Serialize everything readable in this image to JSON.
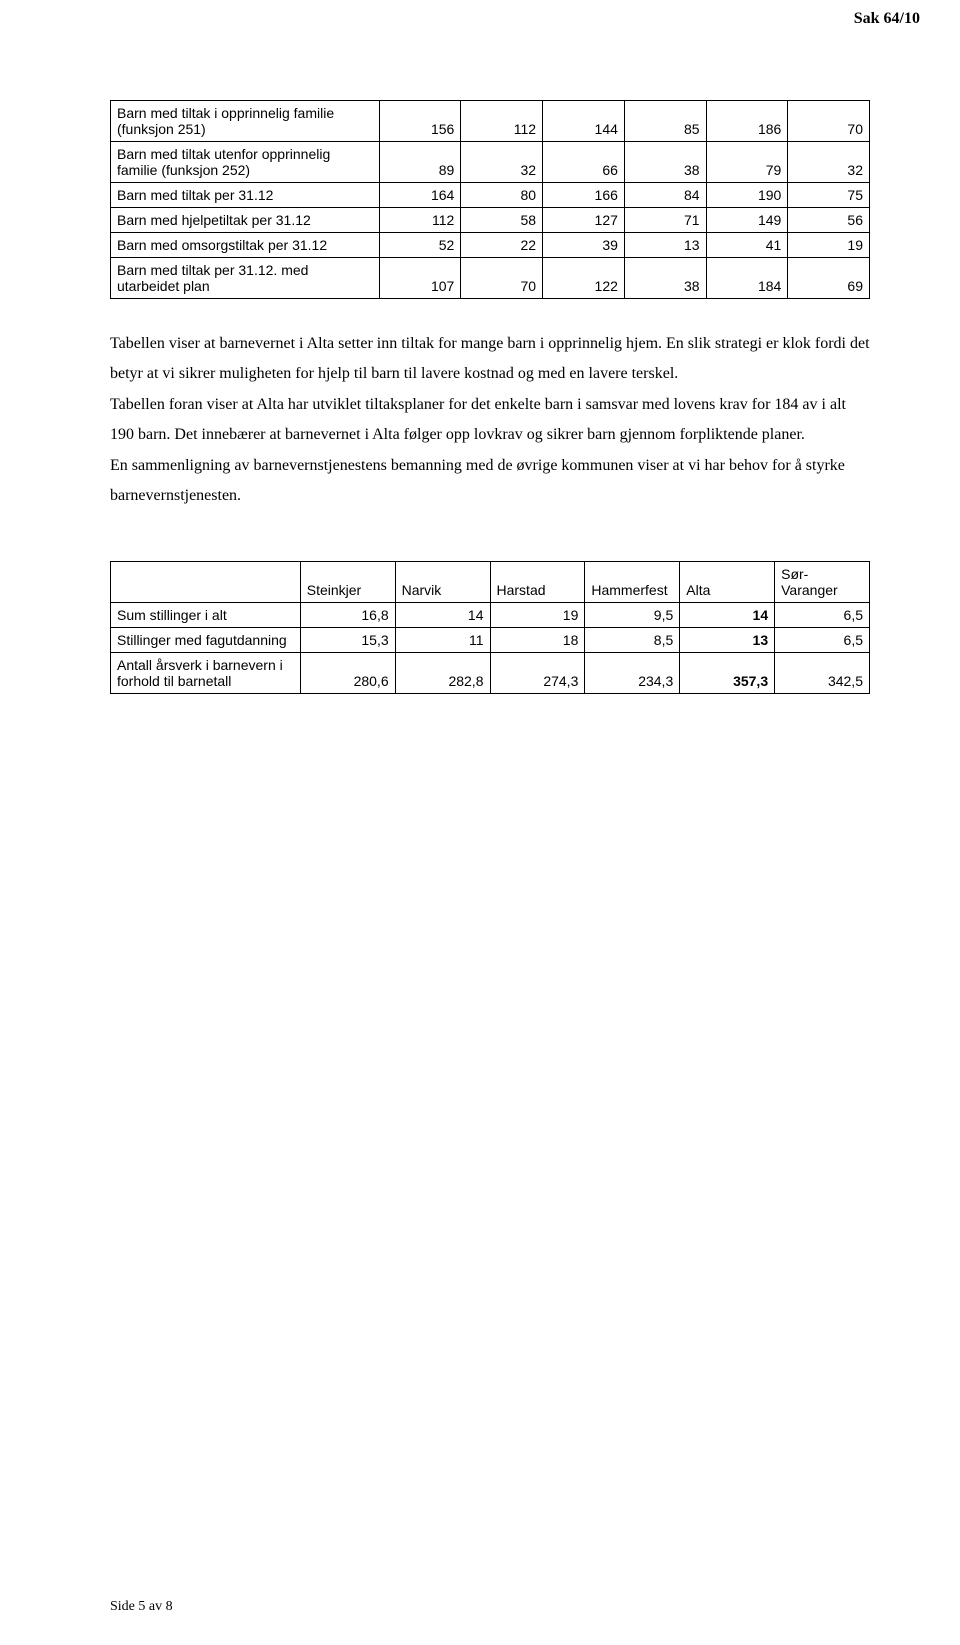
{
  "case_header": "Sak 64/10",
  "table1": {
    "rows": [
      {
        "label": "Barn med tiltak i opprinnelig familie (funksjon 251)",
        "values": [
          156,
          112,
          144,
          85,
          186,
          70
        ]
      },
      {
        "label": "Barn med tiltak utenfor opprinnelig familie (funksjon 252)",
        "values": [
          89,
          32,
          66,
          38,
          79,
          32
        ]
      },
      {
        "label": "Barn med tiltak per 31.12",
        "values": [
          164,
          80,
          166,
          84,
          190,
          75
        ]
      },
      {
        "label": "Barn med hjelpetiltak per 31.12",
        "values": [
          112,
          58,
          127,
          71,
          149,
          56
        ]
      },
      {
        "label": "Barn med omsorgstiltak per 31.12",
        "values": [
          52,
          22,
          39,
          13,
          41,
          19
        ]
      },
      {
        "label": "Barn med tiltak per 31.12. med utarbeidet plan",
        "values": [
          107,
          70,
          122,
          38,
          184,
          69
        ]
      }
    ]
  },
  "paragraphs": [
    "Tabellen viser at barnevernet i Alta setter inn tiltak for mange barn i opprinnelig hjem. En slik strategi er klok fordi det betyr at vi sikrer muligheten for hjelp til barn til lavere kostnad og med en lavere terskel.",
    "Tabellen foran viser at Alta har utviklet tiltaksplaner for det enkelte barn i samsvar med lovens krav for 184 av i alt 190 barn. Det innebærer at barnevernet i Alta følger opp lovkrav og sikrer barn gjennom forpliktende planer.",
    "En sammenligning av barnevernstjenestens bemanning med de øvrige kommunen viser at vi har behov for å styrke barnevernstjenesten."
  ],
  "table2": {
    "headers": [
      "",
      "Steinkje​r",
      "Narvik",
      "Harstad",
      "Hammerfes​t",
      "Alta",
      "Sør-Varanger"
    ],
    "rows": [
      {
        "label": "Sum stillinger i alt",
        "values": [
          "16,8",
          "14",
          "19",
          "9,5",
          "14",
          "6,5"
        ],
        "bold_col": 4
      },
      {
        "label": "Stillinger med fagutdanning",
        "values": [
          "15,3",
          "11",
          "18",
          "8,5",
          "13",
          "6,5"
        ],
        "bold_col": 4
      },
      {
        "label": "Antall årsverk i barnevern i forhold til barnetall",
        "values": [
          "280,6",
          "282,8",
          "274,3",
          "234,3",
          "357,3",
          "342,5"
        ],
        "bold_col": 4
      }
    ]
  },
  "footer": "Side 5 av 8"
}
